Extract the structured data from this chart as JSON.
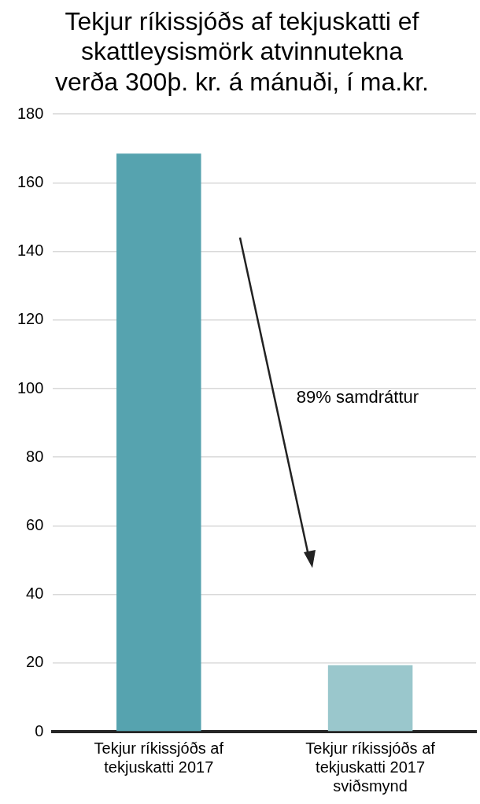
{
  "chart_data": {
    "type": "bar",
    "title": "Tekjur ríkissjóðs af tekjuskatti ef skattleysismörk atvinnutekna verða 300þ. kr. á mánuði, í ma.kr.",
    "categories": [
      "Tekjur ríkissjóðs af tekjuskatti 2017",
      "Tekjur ríkissjóðs af tekjuskatti 2017 sviðsmynd"
    ],
    "values": [
      168.5,
      19.4
    ],
    "colors": [
      "#56a3af",
      "#9ac7cc"
    ],
    "ylim": [
      0,
      180
    ],
    "yticks": [
      0,
      20,
      40,
      60,
      80,
      100,
      120,
      140,
      160,
      180
    ],
    "grid": "y",
    "legend": false,
    "annotations": [
      "89% samdráttur"
    ]
  }
}
